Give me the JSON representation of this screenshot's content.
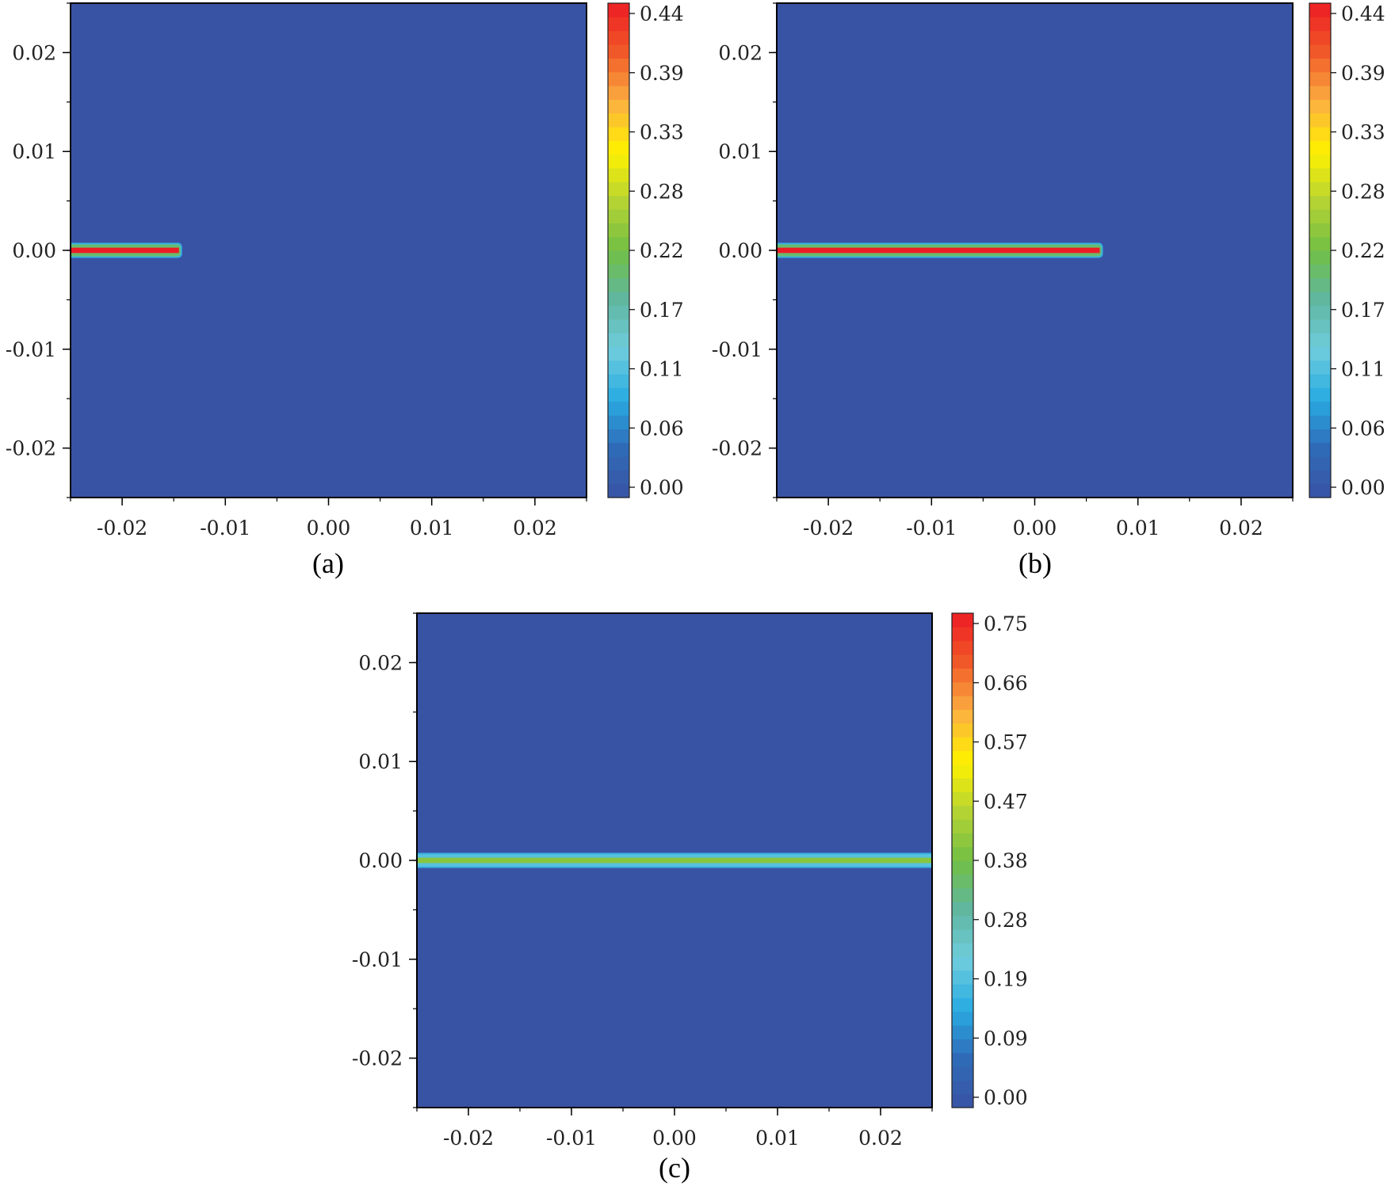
{
  "chart_data": [
    {
      "type": "heatmap",
      "caption": "(a)",
      "x_ticks": [
        "-0.02",
        "-0.01",
        "0.00",
        "0.01",
        "0.02"
      ],
      "y_ticks": [
        "0.02",
        "0.01",
        "0.00",
        "-0.01",
        "-0.02"
      ],
      "xlim": [
        -0.025,
        0.025
      ],
      "ylim": [
        -0.025,
        0.025
      ],
      "colorbar_ticks": [
        "0.44",
        "0.39",
        "0.33",
        "0.28",
        "0.22",
        "0.17",
        "0.11",
        "0.06",
        "0.00"
      ],
      "colorbar_range": [
        0,
        0.44
      ],
      "background_value": 0.0,
      "features": [
        {
          "kind": "band",
          "y": 0.0,
          "x_start": -0.025,
          "x_end": -0.0145,
          "halfwidth": 0.0006,
          "core_value": 0.44,
          "edge_value": 0.2
        }
      ]
    },
    {
      "type": "heatmap",
      "caption": "(b)",
      "x_ticks": [
        "-0.02",
        "-0.01",
        "0.00",
        "0.01",
        "0.02"
      ],
      "y_ticks": [
        "0.02",
        "0.01",
        "0.00",
        "-0.01",
        "-0.02"
      ],
      "xlim": [
        -0.025,
        0.025
      ],
      "ylim": [
        -0.025,
        0.025
      ],
      "colorbar_ticks": [
        "0.44",
        "0.39",
        "0.33",
        "0.28",
        "0.22",
        "0.17",
        "0.11",
        "0.06",
        "0.00"
      ],
      "colorbar_range": [
        0,
        0.44
      ],
      "background_value": 0.0,
      "features": [
        {
          "kind": "band",
          "y": 0.0,
          "x_start": -0.025,
          "x_end": 0.0063,
          "halfwidth": 0.0006,
          "core_value": 0.44,
          "edge_value": 0.2
        }
      ]
    },
    {
      "type": "heatmap",
      "caption": "(c)",
      "x_ticks": [
        "-0.02",
        "-0.01",
        "0.00",
        "0.01",
        "0.02"
      ],
      "y_ticks": [
        "0.02",
        "0.01",
        "0.00",
        "-0.01",
        "-0.02"
      ],
      "xlim": [
        -0.025,
        0.025
      ],
      "ylim": [
        -0.025,
        0.025
      ],
      "colorbar_ticks": [
        "0.75",
        "0.66",
        "0.57",
        "0.47",
        "0.38",
        "0.28",
        "0.19",
        "0.09",
        "0.00"
      ],
      "colorbar_range": [
        0,
        0.75
      ],
      "background_value": 0.0,
      "features": [
        {
          "kind": "band",
          "y": 0.0,
          "x_start": -0.025,
          "x_end": 0.025,
          "halfwidth": 0.0006,
          "core_value": 0.4,
          "edge_value": 0.2
        }
      ]
    }
  ],
  "colors": {
    "background": "#3953a4",
    "colormap": [
      "#3953a4",
      "#2f6bb8",
      "#29abe2",
      "#6fccdd",
      "#5fb7a0",
      "#72bf44",
      "#b5d334",
      "#fff200",
      "#fbb040",
      "#f15a29",
      "#ed1c24"
    ]
  }
}
